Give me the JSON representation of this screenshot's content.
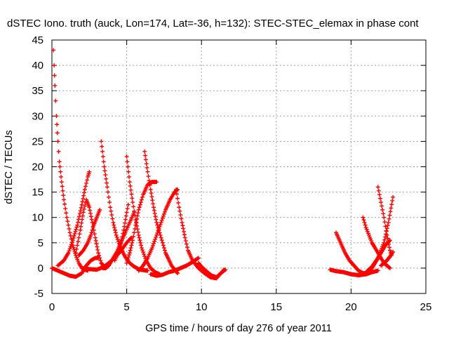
{
  "chart_data": {
    "type": "scatter",
    "title": "dSTEC Iono. truth (auck, Lon=174, Lat=-36, h=132): STEC-STEC_elemax in phase cont",
    "xlabel": "GPS time / hours of day 276 of year 2011",
    "ylabel": "dSTEC  / TECUs",
    "xlim": [
      0,
      25
    ],
    "ylim": [
      -5,
      45
    ],
    "xticks": [
      0,
      5,
      10,
      15,
      20,
      25
    ],
    "yticks": [
      -5,
      0,
      5,
      10,
      15,
      20,
      25,
      30,
      35,
      40,
      45
    ],
    "grid": true,
    "marker": "plus",
    "color": "#ff0000",
    "series": [
      {
        "x": [
          0.1,
          0.15,
          0.2,
          0.3,
          0.4,
          0.5,
          0.65,
          0.8,
          1.0,
          1.2,
          1.4,
          1.6,
          1.8,
          2.0,
          2.2,
          2.4
        ],
        "y": [
          43,
          40,
          36,
          30,
          25,
          21,
          17,
          13.5,
          10,
          7,
          4.5,
          2.5,
          1,
          0,
          -0.3,
          -0.5
        ]
      },
      {
        "x": [
          0.0,
          0.4,
          0.8,
          1.2,
          1.6,
          2.0,
          2.3,
          2.6,
          2.9,
          3.1
        ],
        "y": [
          0,
          -0.5,
          -1,
          -1.5,
          -1.7,
          -1,
          0.5,
          1.5,
          2,
          2
        ]
      },
      {
        "x": [
          0.4,
          0.8,
          1.1,
          1.4,
          1.7,
          2.0,
          2.2,
          2.4,
          2.5
        ],
        "y": [
          0.5,
          1.5,
          3,
          5.5,
          8.5,
          12.5,
          15.5,
          18,
          19
        ]
      },
      {
        "x": [
          1.6,
          1.9,
          2.1,
          2.3,
          2.5,
          2.7,
          2.9,
          3.1,
          3.3,
          3.6
        ],
        "y": [
          3,
          7.5,
          11,
          13.5,
          12,
          9,
          6,
          3,
          1,
          0
        ]
      },
      {
        "x": [
          1.8,
          2.1,
          2.4,
          2.6,
          2.8,
          3.0,
          3.2
        ],
        "y": [
          2.5,
          3.5,
          5,
          6.5,
          8.5,
          10,
          11.5
        ]
      },
      {
        "x": [
          2.1,
          2.5,
          3.0,
          3.5,
          4.0,
          4.5,
          5.0,
          5.3
        ],
        "y": [
          0,
          -0.2,
          -0.3,
          0.3,
          1.5,
          3,
          5,
          6
        ]
      },
      {
        "x": [
          3.3,
          3.5,
          3.7,
          3.9,
          4.1,
          4.3,
          4.6,
          4.9,
          5.2,
          5.5,
          5.8,
          6.1,
          6.4
        ],
        "y": [
          25,
          20,
          16,
          12,
          9,
          6.5,
          4,
          2.2,
          1,
          0.3,
          -0.2,
          -0.4,
          -0.5
        ]
      },
      {
        "x": [
          3.4,
          3.6,
          3.8,
          4.0,
          4.3,
          4.6,
          4.9,
          5.2,
          5.5
        ],
        "y": [
          0,
          0,
          0.5,
          1.5,
          3,
          5,
          7,
          9,
          11
        ]
      },
      {
        "x": [
          4.2,
          4.5,
          4.8,
          5.0,
          5.1
        ],
        "y": [
          1.5,
          3.5,
          7.5,
          11,
          12.5
        ]
      },
      {
        "x": [
          5.0,
          5.2,
          5.4,
          5.6,
          5.8,
          6.0,
          6.3,
          6.6,
          6.9,
          7.2
        ],
        "y": [
          22,
          17,
          13,
          9.5,
          6.5,
          4,
          1.5,
          0,
          -0.8,
          -1.2
        ]
      },
      {
        "x": [
          5.0,
          5.2,
          5.4,
          5.6,
          5.8,
          6.1,
          6.4,
          6.7,
          7.0
        ],
        "y": [
          1,
          3,
          5.5,
          8.5,
          11.5,
          14.5,
          16.5,
          17,
          17
        ]
      },
      {
        "x": [
          6.2,
          6.4,
          6.6,
          6.8,
          7.0,
          7.3,
          7.6,
          8.0,
          8.4
        ],
        "y": [
          23,
          19,
          15.5,
          12,
          9,
          6,
          3,
          0.5,
          -1
        ]
      },
      {
        "x": [
          5.8,
          6.1,
          6.4,
          6.7,
          7.0,
          7.3,
          7.6,
          7.9,
          8.2,
          8.4
        ],
        "y": [
          -0.5,
          0.5,
          2,
          4,
          6.5,
          9,
          11.5,
          13.5,
          15,
          15.5
        ]
      },
      {
        "x": [
          8.3,
          8.5,
          8.7,
          8.9,
          9.1,
          9.4,
          9.8,
          10.2,
          10.6,
          11.0,
          11.5
        ],
        "y": [
          15.5,
          12,
          9,
          6,
          3.5,
          1.5,
          0,
          -1,
          -1.8,
          -2,
          -0.3
        ]
      },
      {
        "x": [
          6.6,
          7.0,
          7.4,
          7.8,
          8.2,
          8.6,
          9.0,
          9.4,
          9.8
        ],
        "y": [
          -1.2,
          -1.5,
          -1.3,
          -0.8,
          -0.5,
          0,
          0.5,
          1.2,
          2
        ]
      },
      {
        "x": [
          9.8,
          10.1,
          10.4,
          10.7,
          11.0,
          11.3,
          11.6
        ],
        "y": [
          1,
          0,
          -0.8,
          -1.5,
          -1.8,
          -1,
          -0.3
        ]
      },
      {
        "x": [
          18.6,
          19.0,
          19.5,
          20.0,
          20.5,
          21.0,
          21.4,
          21.8
        ],
        "y": [
          -0.3,
          -0.6,
          -0.8,
          -1.2,
          -1.4,
          -1.2,
          -0.8,
          -0.5
        ]
      },
      {
        "x": [
          19.0,
          19.3,
          19.6,
          19.9,
          20.2,
          20.5,
          20.8,
          21.1,
          21.4,
          21.7,
          22.0,
          22.3,
          22.6
        ],
        "y": [
          7,
          5,
          3,
          1.5,
          0.5,
          -0.5,
          -1,
          -1,
          0,
          1.5,
          3,
          4.5,
          5.5
        ]
      },
      {
        "x": [
          20.8,
          21.0,
          21.2,
          21.4,
          21.6,
          21.8,
          22.0,
          22.2,
          22.4,
          22.6
        ],
        "y": [
          10,
          8,
          6.5,
          5,
          4,
          3,
          2,
          1,
          0.5,
          0
        ]
      },
      {
        "x": [
          21.8,
          22.0,
          22.2,
          22.4,
          22.6,
          22.7
        ],
        "y": [
          16,
          13,
          10,
          6.5,
          3.5,
          2.5
        ]
      },
      {
        "x": [
          21.0,
          21.4,
          21.8,
          22.2,
          22.5,
          22.8
        ],
        "y": [
          -0.8,
          0.3,
          2,
          5,
          9,
          14
        ]
      },
      {
        "x": [
          22.0,
          22.2,
          22.4,
          22.6,
          22.8
        ],
        "y": [
          0.5,
          1,
          1.5,
          2.3,
          3.2
        ]
      }
    ]
  }
}
